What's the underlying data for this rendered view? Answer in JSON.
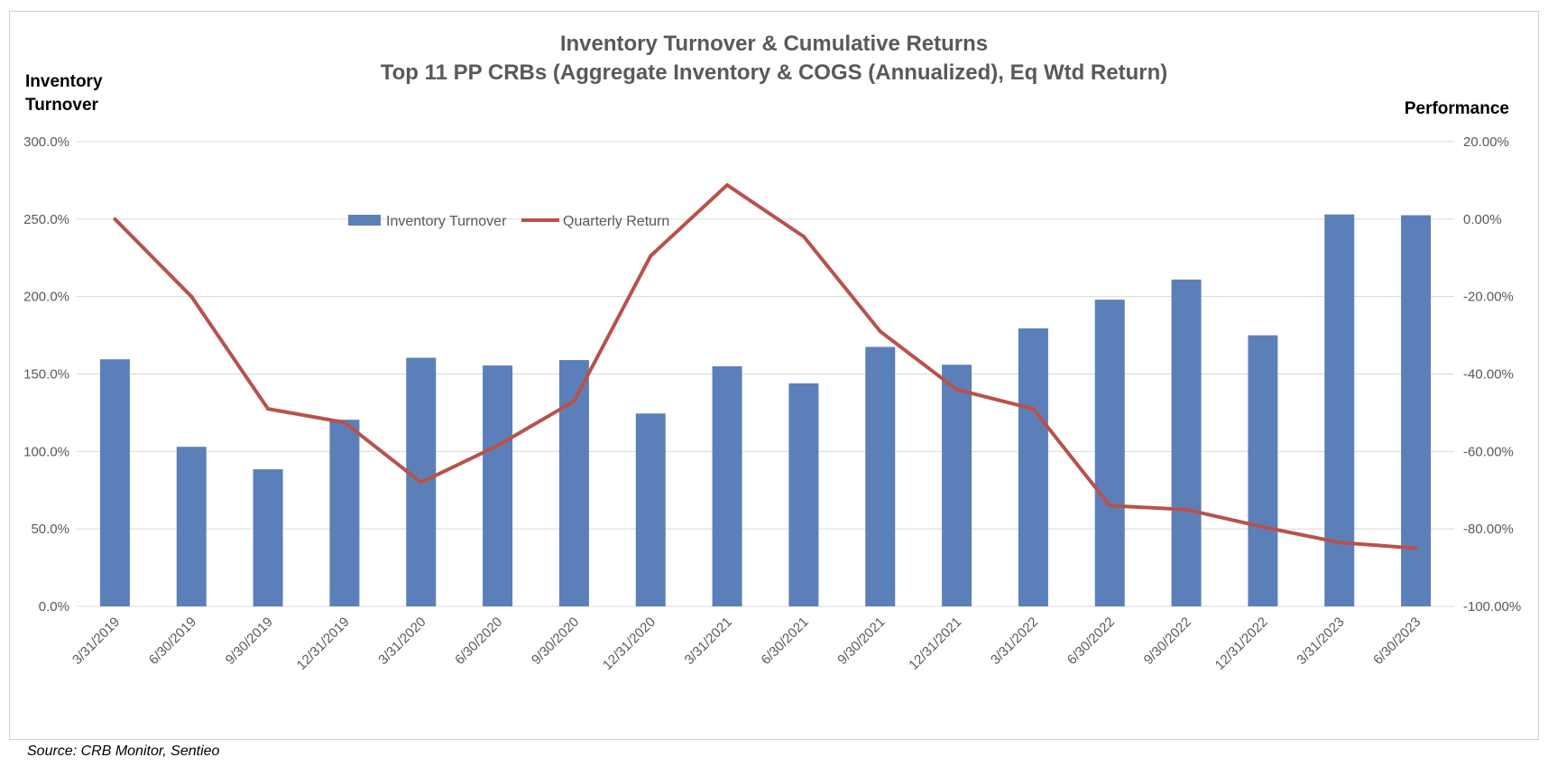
{
  "source_note": "Source: CRB Monitor, Sentieo",
  "colors": {
    "bar": "#5b80b9",
    "line": "#b9514b",
    "grid": "#d9d9d9",
    "text": "#595959"
  },
  "chart_data": {
    "type": "bar",
    "title": "Inventory Turnover & Cumulative Returns",
    "subtitle": "Top 11 PP CRBs (Aggregate Inventory & COGS (Annualized), Eq Wtd Return)",
    "y_left_label_line1": "Inventory",
    "y_left_label_line2": "Turnover",
    "y_right_label": "Performance",
    "categories": [
      "3/31/2019",
      "6/30/2019",
      "9/30/2019",
      "12/31/2019",
      "3/31/2020",
      "6/30/2020",
      "9/30/2020",
      "12/31/2020",
      "3/31/2021",
      "6/30/2021",
      "9/30/2021",
      "12/31/2021",
      "3/31/2022",
      "6/30/2022",
      "9/30/2022",
      "12/31/2022",
      "3/31/2023",
      "6/30/2023"
    ],
    "y_left_ticks": [
      "0.0%",
      "50.0%",
      "100.0%",
      "150.0%",
      "200.0%",
      "250.0%",
      "300.0%"
    ],
    "y_right_ticks": [
      "-100.00%",
      "-80.00%",
      "-60.00%",
      "-40.00%",
      "-20.00%",
      "0.00%",
      "20.00%"
    ],
    "y_left_range": [
      0,
      300
    ],
    "y_right_range": [
      -100,
      20
    ],
    "grid": true,
    "legend_position": "top-center",
    "series": [
      {
        "name": "Inventory Turnover",
        "type": "bar",
        "axis": "left",
        "values": [
          159.5,
          103,
          88.5,
          120.5,
          160.5,
          155.5,
          159,
          124.5,
          155,
          144,
          167.5,
          156,
          179.5,
          198,
          211,
          175,
          253,
          252.5
        ]
      },
      {
        "name": "Quarterly Return",
        "type": "line",
        "axis": "right",
        "values": [
          0.0,
          -20.0,
          -49.0,
          -52.5,
          -68.0,
          -58.5,
          -47.0,
          -9.5,
          8.8,
          -4.5,
          -29.0,
          -44.0,
          -49.0,
          -74.0,
          -75.0,
          -79.5,
          -83.5,
          -85.0
        ]
      }
    ]
  }
}
